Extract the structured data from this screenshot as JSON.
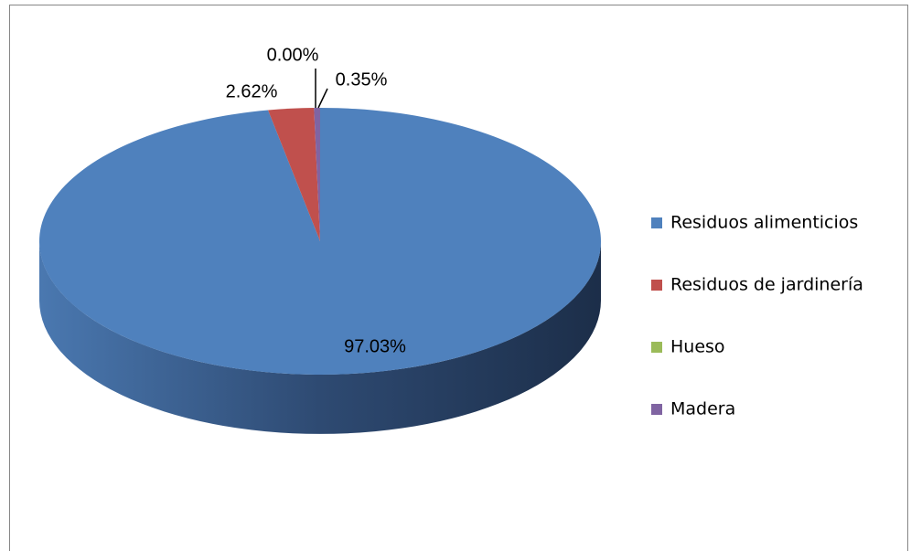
{
  "chart_data": {
    "type": "pie",
    "categories": [
      "Residuos alimenticios",
      "Residuos de jardinería",
      "Hueso",
      "Madera"
    ],
    "values": [
      97.03,
      2.62,
      0.0,
      0.35
    ],
    "value_labels": [
      "97.03%",
      "2.62%",
      "0.00%",
      "0.35%"
    ],
    "colors": [
      "#4f81bd",
      "#c0504d",
      "#9bbb59",
      "#8064a2"
    ],
    "legend": "right"
  }
}
